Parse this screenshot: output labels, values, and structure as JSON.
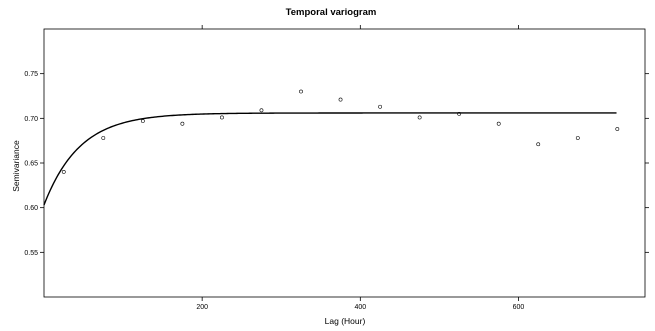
{
  "chart_data": {
    "type": "scatter",
    "title": "Temporal variogram",
    "xlabel": "Lag (Hour)",
    "ylabel": "Semivariance",
    "xlim": [
      0,
      760
    ],
    "ylim": [
      0.5,
      0.8
    ],
    "x_ticks": [
      200,
      400,
      600
    ],
    "x_tick_labels": [
      "200",
      "400",
      "600"
    ],
    "y_ticks": [
      0.55,
      0.6,
      0.65,
      0.7,
      0.75
    ],
    "y_tick_labels": [
      "0.55",
      "0.60",
      "0.65",
      "0.70",
      "0.75"
    ],
    "points": [
      {
        "x": 25,
        "y": 0.64
      },
      {
        "x": 75,
        "y": 0.678
      },
      {
        "x": 125,
        "y": 0.697
      },
      {
        "x": 175,
        "y": 0.694
      },
      {
        "x": 225,
        "y": 0.701
      },
      {
        "x": 275,
        "y": 0.709
      },
      {
        "x": 325,
        "y": 0.73
      },
      {
        "x": 375,
        "y": 0.721
      },
      {
        "x": 425,
        "y": 0.713
      },
      {
        "x": 475,
        "y": 0.701
      },
      {
        "x": 525,
        "y": 0.705
      },
      {
        "x": 575,
        "y": 0.694
      },
      {
        "x": 625,
        "y": 0.671
      },
      {
        "x": 675,
        "y": 0.678
      },
      {
        "x": 725,
        "y": 0.688
      }
    ],
    "model_curve": {
      "nugget": 0.603,
      "sill": 0.706,
      "range": 45,
      "x_end": 725
    },
    "grid": false
  }
}
